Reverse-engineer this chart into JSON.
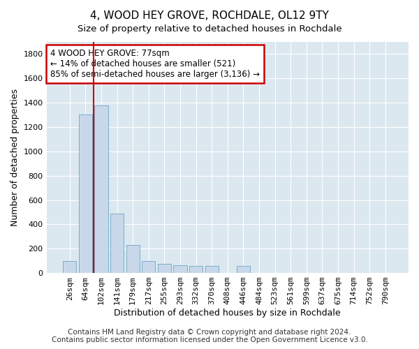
{
  "title": "4, WOOD HEY GROVE, ROCHDALE, OL12 9TY",
  "subtitle": "Size of property relative to detached houses in Rochdale",
  "xlabel": "Distribution of detached houses by size in Rochdale",
  "ylabel": "Number of detached properties",
  "categories": [
    "26sqm",
    "64sqm",
    "102sqm",
    "141sqm",
    "179sqm",
    "217sqm",
    "255sqm",
    "293sqm",
    "332sqm",
    "370sqm",
    "408sqm",
    "446sqm",
    "484sqm",
    "523sqm",
    "561sqm",
    "599sqm",
    "637sqm",
    "675sqm",
    "714sqm",
    "752sqm",
    "790sqm"
  ],
  "values": [
    100,
    1305,
    1375,
    490,
    230,
    100,
    75,
    65,
    55,
    55,
    0,
    55,
    0,
    0,
    0,
    0,
    0,
    0,
    0,
    0,
    0
  ],
  "bar_color": "#c8d8ea",
  "bar_edge_color": "#7aadcc",
  "property_line_x": 1.5,
  "annotation_text": "4 WOOD HEY GROVE: 77sqm\n← 14% of detached houses are smaller (521)\n85% of semi-detached houses are larger (3,136) →",
  "annotation_box_color": "#ffffff",
  "annotation_box_edge": "#cc0000",
  "vline_color": "#cc0000",
  "ylim": [
    0,
    1900
  ],
  "yticks": [
    0,
    200,
    400,
    600,
    800,
    1000,
    1200,
    1400,
    1600,
    1800
  ],
  "footer_line1": "Contains HM Land Registry data © Crown copyright and database right 2024.",
  "footer_line2": "Contains public sector information licensed under the Open Government Licence v3.0.",
  "bg_color": "#ffffff",
  "plot_bg_color": "#dce8f0",
  "title_fontsize": 11,
  "axis_label_fontsize": 9,
  "tick_fontsize": 8,
  "footer_fontsize": 7.5
}
